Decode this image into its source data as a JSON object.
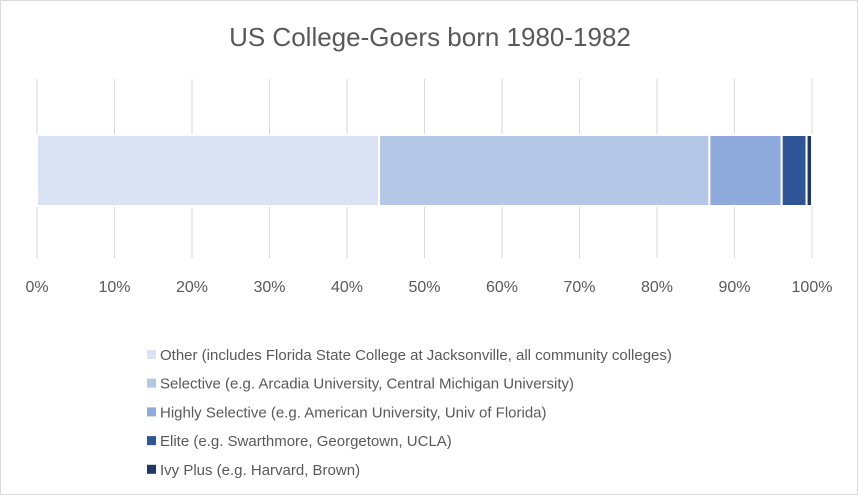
{
  "chart_data": {
    "type": "bar",
    "orientation": "horizontal",
    "stacked": "percent",
    "title": "US College-Goers born 1980-1982",
    "categories": [
      ""
    ],
    "series": [
      {
        "name": "Other (includes Florida State College at Jacksonville, all community colleges)",
        "values": [
          44.0
        ],
        "color": "#dae3f3"
      },
      {
        "name": "Selective (e.g. Arcadia University, Central Michigan University)",
        "values": [
          42.5
        ],
        "color": "#b4c7e7"
      },
      {
        "name": "Highly Selective (e.g. American University, Univ of Florida)",
        "values": [
          9.3
        ],
        "color": "#8faadc"
      },
      {
        "name": "Elite (e.g. Swarthmore, Georgetown, UCLA)",
        "values": [
          3.2
        ],
        "color": "#2f5597"
      },
      {
        "name": "Ivy Plus (e.g. Harvard, Brown)",
        "values": [
          0.7
        ],
        "color": "#1f3864"
      }
    ],
    "xlim": [
      0,
      100
    ],
    "x_ticks": [
      "0%",
      "10%",
      "20%",
      "30%",
      "40%",
      "50%",
      "60%",
      "70%",
      "80%",
      "90%",
      "100%"
    ],
    "grid": true,
    "legend_position": "bottom"
  }
}
